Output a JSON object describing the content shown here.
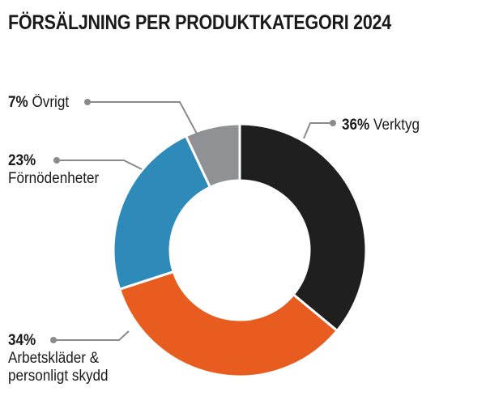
{
  "chart_data": {
    "type": "pie",
    "title": "FÖRSÄLJNING PER PRODUKTKATEGORI 2024",
    "donut": true,
    "start_angle_deg": 0,
    "direction": "clockwise",
    "slices": [
      {
        "name": "Verktyg",
        "value": 36,
        "label": "36%",
        "color": "#1f1f1f"
      },
      {
        "name": "Arbetskläder & personligt skydd",
        "value": 34,
        "label": "34%",
        "color": "#e85c20"
      },
      {
        "name": "Förnödenheter",
        "value": 23,
        "label": "23%",
        "color": "#2e8ab8"
      },
      {
        "name": "Övrigt",
        "value": 7,
        "label": "7%",
        "color": "#8f9194"
      }
    ],
    "leader_color": "#8a8a8a",
    "legend": "none"
  },
  "labels": {
    "verktyg": {
      "pct": "36%",
      "name": "Verktyg"
    },
    "arbetsklader": {
      "pct": "34%",
      "line1": "Arbetskläder &",
      "line2": "personligt skydd"
    },
    "fornodenheter": {
      "pct": "23%",
      "name": "Förnödenheter"
    },
    "ovrigt": {
      "pct": "7%",
      "name": "Övrigt"
    }
  }
}
